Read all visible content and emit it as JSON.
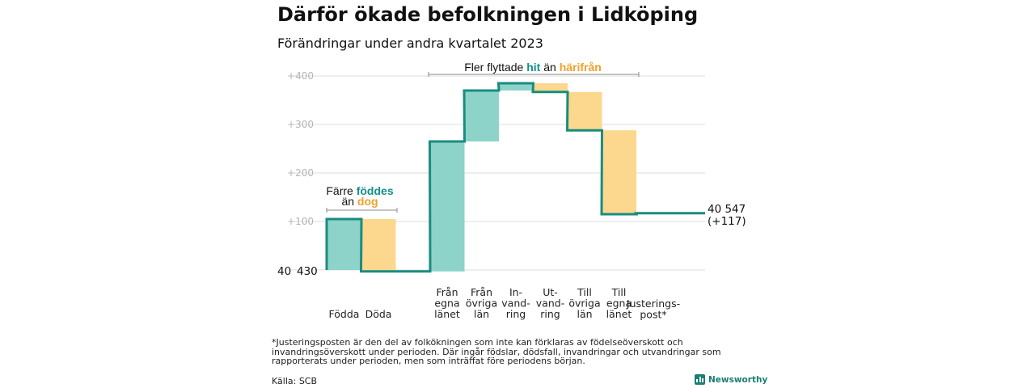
{
  "title": "Därför ökade befolkningen i Lidköping",
  "subtitle": "Förändringar under andra kvartalet 2023",
  "chart_data": {
    "type": "waterfall",
    "start": {
      "value": 40430,
      "label_parts": [
        "40",
        "430"
      ]
    },
    "end": {
      "value": 40547,
      "change": 117,
      "label_line1": "40 547",
      "label_line2": "(+117)"
    },
    "y_ticks": [
      {
        "value": 100,
        "label": "+100"
      },
      {
        "value": 200,
        "label": "+200"
      },
      {
        "value": 300,
        "label": "+300"
      },
      {
        "value": 400,
        "label": "+400"
      }
    ],
    "ylim": [
      0,
      420
    ],
    "grid": true,
    "colors": {
      "increase": "#8dd3c9",
      "decrease": "#fbd88e",
      "step_line": "#1a8c7f",
      "grid": "#dddddd"
    },
    "steps": [
      {
        "label_lines": [
          "Födda"
        ],
        "change": 105,
        "kind": "increase"
      },
      {
        "label_lines": [
          "Döda"
        ],
        "change": -108,
        "kind": "decrease"
      },
      {
        "label_lines": [],
        "change": 0,
        "kind": "gap"
      },
      {
        "label_lines": [
          "Från",
          "egna",
          "länet"
        ],
        "change": 268,
        "kind": "increase"
      },
      {
        "label_lines": [
          "Från",
          "övriga",
          "län"
        ],
        "change": 105,
        "kind": "increase"
      },
      {
        "label_lines": [
          "In-",
          "vand-",
          "ring"
        ],
        "change": 15,
        "kind": "increase"
      },
      {
        "label_lines": [
          "Ut-",
          "vand-",
          "ring"
        ],
        "change": -18,
        "kind": "decrease"
      },
      {
        "label_lines": [
          "Till",
          "övriga",
          "län"
        ],
        "change": -79,
        "kind": "decrease"
      },
      {
        "label_lines": [
          "Till",
          "egna",
          "länet"
        ],
        "change": -173,
        "kind": "decrease"
      },
      {
        "label_lines": [
          "Justerings-",
          "post*"
        ],
        "change": 2,
        "kind": "adjustment"
      }
    ],
    "annotations": {
      "births_deaths": {
        "line1": "Färre ",
        "line1_highlight": "föddes",
        "line2": "än ",
        "line2_highlight": "dog"
      },
      "migration": {
        "prefix": "Fler flyttade ",
        "highlight1": "hit",
        "middle": " än ",
        "highlight2": "härifrån"
      }
    }
  },
  "footnote": "*Justeringsposten är den del av folkökningen som inte kan förklaras av födelseöverskott och invandringsöverskott under perioden. Där ingår födslar, dödsfall, invandringar och utvandringar som rapporterats under perioden, men som inträffat före periodens början.",
  "source": "Källa: SCB",
  "brand": "Newsworthy"
}
